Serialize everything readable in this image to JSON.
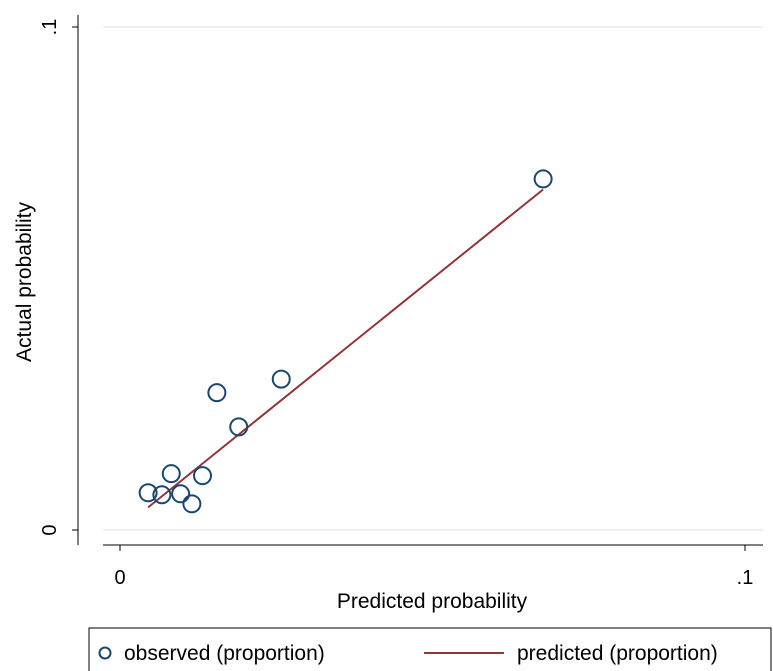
{
  "chart_data": {
    "type": "scatter",
    "title": "",
    "xlabel": "Predicted probability",
    "ylabel": "Actual probability",
    "xlim": [
      0,
      0.1
    ],
    "ylim": [
      0,
      0.1
    ],
    "x_ticks": [
      0,
      0.1
    ],
    "y_ticks": [
      0,
      0.1
    ],
    "x_tick_labels": [
      "0",
      ".1"
    ],
    "y_tick_labels": [
      "0",
      ".1"
    ],
    "grid": "horizontal",
    "legend_position": "bottom",
    "series": [
      {
        "name": "observed (proportion)",
        "kind": "scatter",
        "marker": "hollow-circle",
        "color": "#1a476f",
        "x": [
          0.0045,
          0.0067,
          0.0082,
          0.0097,
          0.0115,
          0.0132,
          0.0155,
          0.019,
          0.0258,
          0.0677
        ],
        "y": [
          0.0074,
          0.007,
          0.0112,
          0.0072,
          0.0052,
          0.0108,
          0.0273,
          0.0205,
          0.03,
          0.0698
        ]
      },
      {
        "name": "predicted (proportion)",
        "kind": "line",
        "color": "#90353b",
        "x": [
          0.0045,
          0.0677
        ],
        "y": [
          0.0045,
          0.0677
        ]
      }
    ]
  }
}
